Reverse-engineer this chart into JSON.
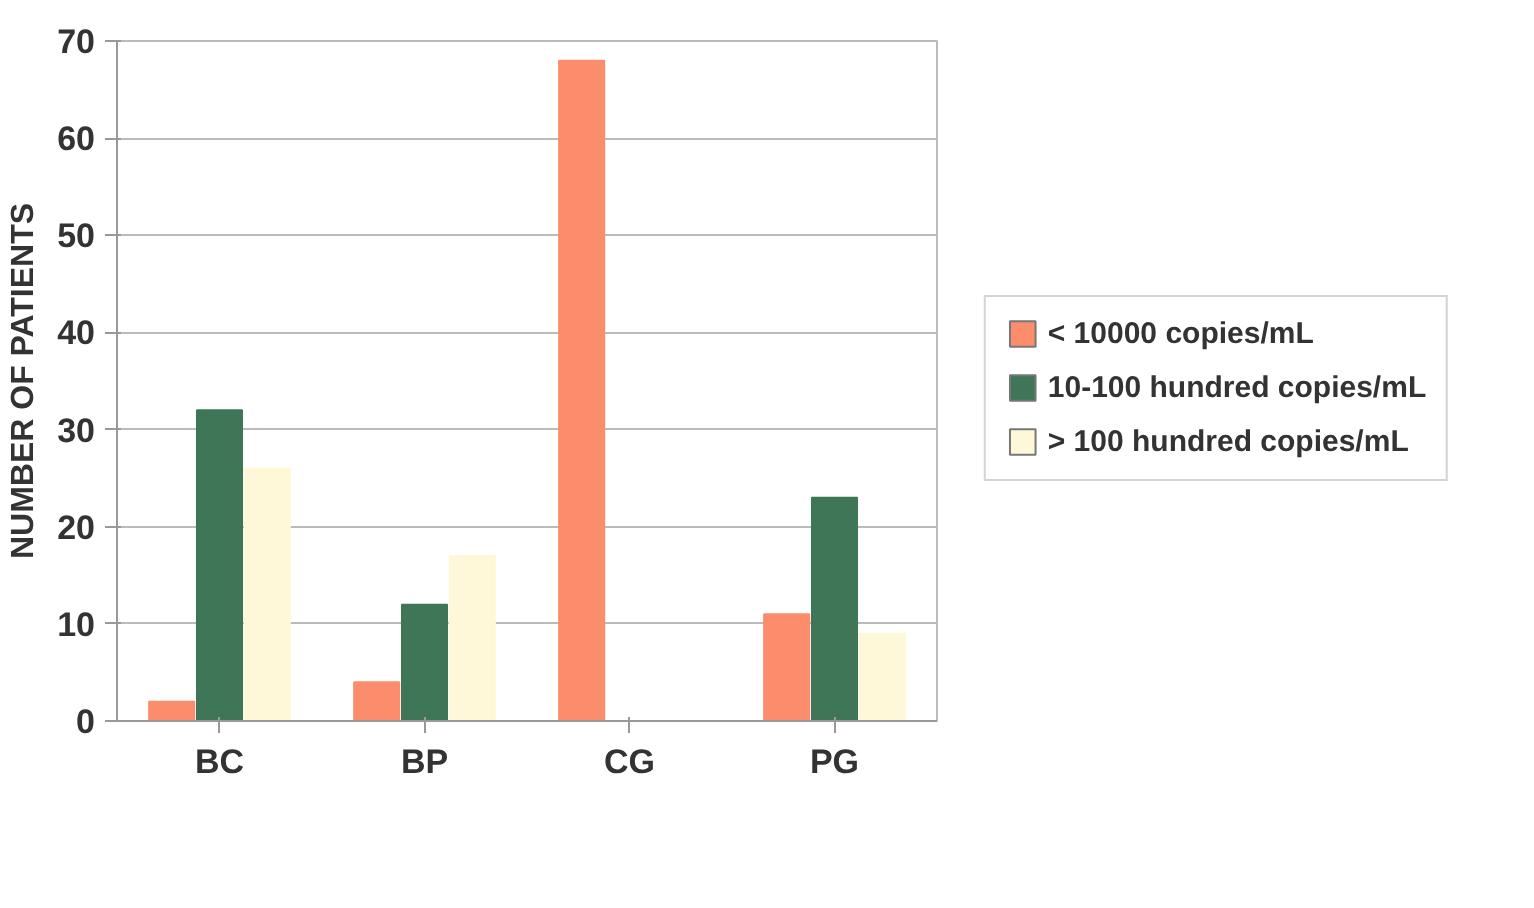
{
  "chart_data": {
    "type": "bar",
    "ylabel": "NUMBER OF PATIENTS",
    "categories": [
      "BC",
      "BP",
      "CG",
      "PG"
    ],
    "series": [
      {
        "name": "< 10000 copies/mL",
        "color": "#fb8c6c",
        "values": [
          2,
          4,
          68,
          11
        ]
      },
      {
        "name": "10-100 hundred copies/mL",
        "color": "#3f7657",
        "values": [
          32,
          12,
          0,
          23
        ]
      },
      {
        "name": "> 100 hundred copies/mL",
        "color": "#fff8d8",
        "values": [
          26,
          17,
          0,
          9
        ]
      }
    ],
    "ylim": [
      0,
      70
    ],
    "yticks": [
      0,
      10,
      20,
      30,
      40,
      50,
      60,
      70
    ],
    "grid": "y",
    "legend": "right"
  }
}
